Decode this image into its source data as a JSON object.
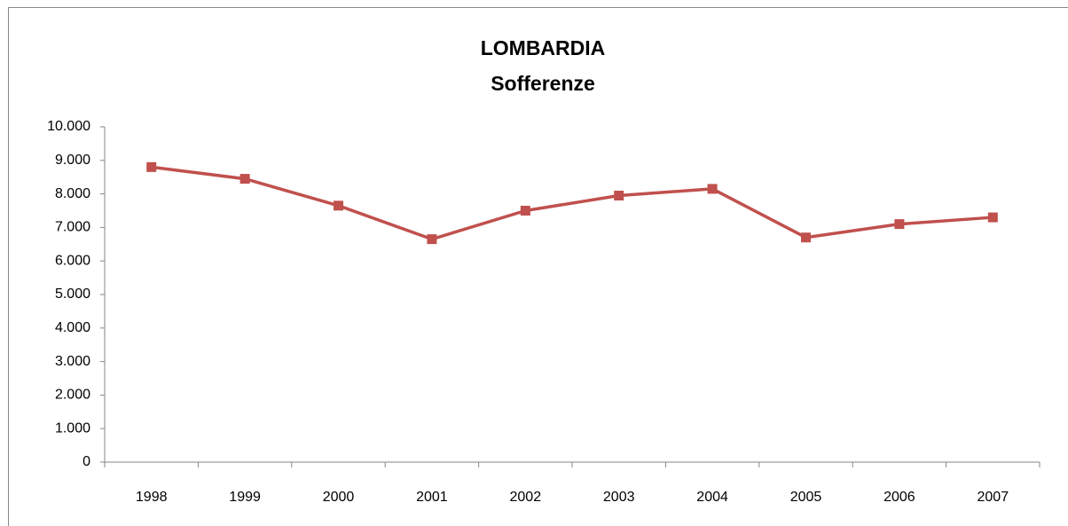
{
  "chart_data": {
    "type": "line",
    "title": "LOMBARDIA",
    "subtitle": "Sofferenze",
    "categories": [
      "1998",
      "1999",
      "2000",
      "2001",
      "2002",
      "2003",
      "2004",
      "2005",
      "2006",
      "2007"
    ],
    "series": [
      {
        "name": "Sofferenze",
        "color": "#c0504d",
        "values": [
          8800,
          8450,
          7650,
          6650,
          7500,
          7950,
          8150,
          6700,
          7100,
          7300
        ]
      }
    ],
    "ylim": [
      0,
      10000
    ],
    "yticks": [
      0,
      {
        "value": 1000,
        "label": "1.000"
      },
      {
        "value": 2000,
        "label": "2.000"
      },
      {
        "value": 3000,
        "label": "3.000"
      },
      {
        "value": 4000,
        "label": "4.000"
      },
      {
        "value": 5000,
        "label": "5.000"
      },
      {
        "value": 6000,
        "label": "6.000"
      },
      {
        "value": 7000,
        "label": "7.000"
      },
      {
        "value": 8000,
        "label": "8.000"
      },
      {
        "value": 9000,
        "label": "9.000"
      },
      {
        "value": 10000,
        "label": "10.000"
      }
    ],
    "grid": false,
    "legend": false
  }
}
